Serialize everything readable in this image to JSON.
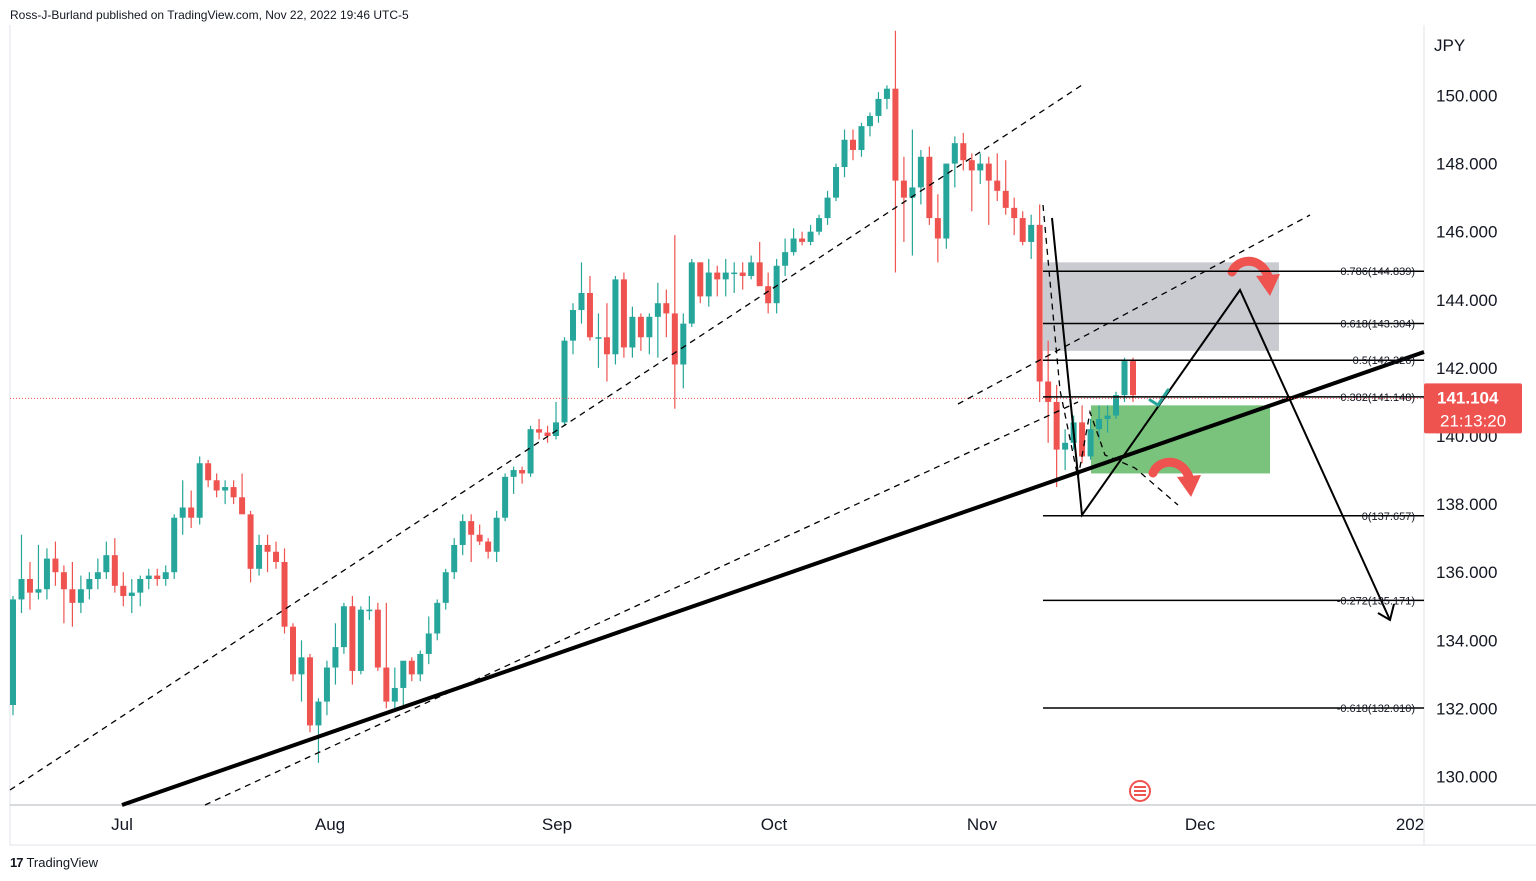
{
  "header": {
    "text": "Ross-J-Burland published on TradingView.com, Nov 22, 2022 19:46 UTC-5"
  },
  "footer": {
    "logo_icon": "tradingview-logo-icon",
    "brand": "TradingView",
    "logo_glyph": "17"
  },
  "colors": {
    "up": "#26a69a",
    "down": "#ef5350",
    "price_tag": "#ef5350",
    "supply_zone": "#b2b5be",
    "demand_zone": "#4caf50",
    "lines": "#000000",
    "arrow": "#ef5350"
  },
  "chart_data": {
    "type": "candlestick",
    "symbol_currency": "JPY",
    "y_ticks": [
      "150.000",
      "148.000",
      "146.000",
      "144.000",
      "142.000",
      "140.000",
      "138.000",
      "136.000",
      "134.000",
      "132.000",
      "130.000"
    ],
    "y_tick_values": [
      150,
      148,
      146,
      144,
      142,
      140,
      138,
      136,
      134,
      132,
      130
    ],
    "ylim": [
      129.3,
      152.0
    ],
    "x_ticks": [
      "Jul",
      "Aug",
      "Sep",
      "Oct",
      "Nov",
      "Dec",
      "202"
    ],
    "current_price": "141.104",
    "countdown": "21:13:20",
    "candles": [
      [
        132.1,
        135.3,
        131.8,
        135.2
      ],
      [
        135.2,
        137.1,
        134.8,
        135.8
      ],
      [
        135.8,
        136.3,
        134.9,
        135.4
      ],
      [
        135.4,
        136.8,
        135.2,
        135.5
      ],
      [
        135.5,
        136.7,
        135.2,
        136.4
      ],
      [
        136.4,
        136.9,
        135.6,
        136.0
      ],
      [
        136.0,
        136.2,
        134.5,
        135.5
      ],
      [
        135.5,
        136.3,
        134.4,
        135.1
      ],
      [
        135.1,
        135.9,
        134.8,
        135.5
      ],
      [
        135.5,
        136.0,
        135.2,
        135.8
      ],
      [
        135.8,
        136.4,
        135.5,
        136.0
      ],
      [
        136.0,
        136.9,
        135.8,
        136.5
      ],
      [
        136.5,
        137.0,
        135.4,
        135.6
      ],
      [
        135.6,
        136.0,
        135.0,
        135.3
      ],
      [
        135.3,
        135.8,
        134.8,
        135.4
      ],
      [
        135.4,
        135.9,
        135.0,
        135.8
      ],
      [
        135.8,
        136.1,
        135.5,
        135.9
      ],
      [
        135.9,
        136.1,
        135.6,
        135.8
      ],
      [
        135.8,
        136.2,
        135.6,
        136.0
      ],
      [
        136.0,
        137.7,
        135.8,
        137.6
      ],
      [
        137.6,
        138.7,
        137.1,
        137.9
      ],
      [
        137.9,
        138.4,
        137.3,
        137.6
      ],
      [
        137.6,
        139.4,
        137.4,
        139.2
      ],
      [
        139.2,
        139.3,
        138.5,
        138.7
      ],
      [
        138.7,
        138.9,
        138.2,
        138.4
      ],
      [
        138.4,
        138.7,
        138.0,
        138.5
      ],
      [
        138.5,
        138.7,
        138.0,
        138.2
      ],
      [
        138.2,
        138.9,
        137.9,
        137.7
      ],
      [
        137.7,
        137.8,
        135.7,
        136.1
      ],
      [
        136.1,
        137.1,
        135.9,
        136.8
      ],
      [
        136.8,
        137.1,
        136.0,
        136.6
      ],
      [
        136.6,
        136.9,
        136.1,
        136.3
      ],
      [
        136.3,
        136.7,
        134.2,
        134.4
      ],
      [
        134.4,
        134.5,
        132.8,
        133.0
      ],
      [
        133.0,
        134.0,
        132.2,
        133.5
      ],
      [
        133.5,
        133.6,
        131.3,
        131.5
      ],
      [
        131.5,
        132.3,
        130.4,
        132.2
      ],
      [
        132.2,
        133.4,
        131.8,
        133.2
      ],
      [
        133.2,
        134.5,
        132.7,
        133.8
      ],
      [
        133.8,
        135.1,
        133.6,
        135.0
      ],
      [
        135.0,
        135.3,
        132.7,
        133.1
      ],
      [
        133.1,
        135.0,
        133.0,
        134.9
      ],
      [
        134.9,
        135.3,
        134.6,
        134.9
      ],
      [
        134.9,
        135.1,
        133.1,
        133.2
      ],
      [
        133.2,
        135.1,
        132.0,
        132.2
      ],
      [
        132.2,
        133.2,
        131.9,
        132.6
      ],
      [
        132.6,
        133.2,
        132.1,
        133.4
      ],
      [
        133.4,
        133.5,
        132.8,
        133.0
      ],
      [
        133.0,
        133.7,
        132.8,
        133.6
      ],
      [
        133.6,
        134.7,
        133.3,
        134.2
      ],
      [
        134.2,
        135.2,
        134.0,
        135.1
      ],
      [
        135.1,
        136.1,
        134.9,
        136.0
      ],
      [
        136.0,
        137.0,
        135.8,
        136.8
      ],
      [
        136.8,
        137.7,
        136.5,
        137.5
      ],
      [
        137.5,
        137.7,
        136.3,
        137.1
      ],
      [
        137.1,
        137.4,
        136.8,
        136.9
      ],
      [
        136.9,
        137.0,
        136.4,
        136.6
      ],
      [
        136.6,
        137.8,
        136.3,
        137.6
      ],
      [
        137.6,
        138.9,
        137.5,
        138.8
      ],
      [
        138.8,
        139.1,
        138.3,
        139.0
      ],
      [
        139.0,
        139.1,
        138.6,
        138.9
      ],
      [
        138.9,
        140.3,
        138.8,
        140.2
      ],
      [
        140.2,
        140.5,
        139.9,
        140.1
      ],
      [
        140.1,
        140.3,
        139.8,
        140.0
      ],
      [
        140.0,
        141.0,
        139.9,
        140.4
      ],
      [
        140.4,
        142.9,
        140.3,
        142.8
      ],
      [
        142.8,
        143.9,
        142.4,
        143.7
      ],
      [
        143.7,
        145.1,
        143.3,
        144.2
      ],
      [
        144.2,
        144.7,
        142.8,
        142.9
      ],
      [
        142.9,
        143.6,
        142.0,
        142.9
      ],
      [
        142.9,
        143.9,
        141.6,
        142.4
      ],
      [
        142.4,
        144.7,
        142.1,
        144.6
      ],
      [
        144.6,
        144.8,
        142.3,
        142.6
      ],
      [
        142.6,
        143.8,
        142.3,
        143.5
      ],
      [
        143.5,
        143.6,
        142.5,
        142.9
      ],
      [
        142.9,
        143.6,
        142.4,
        143.5
      ],
      [
        143.5,
        144.5,
        142.3,
        143.9
      ],
      [
        143.9,
        144.3,
        142.9,
        143.6
      ],
      [
        143.6,
        145.9,
        140.8,
        142.1
      ],
      [
        142.1,
        143.6,
        141.4,
        143.3
      ],
      [
        143.3,
        145.2,
        143.2,
        145.1
      ],
      [
        145.1,
        145.1,
        143.9,
        144.1
      ],
      [
        144.1,
        145.2,
        143.8,
        144.8
      ],
      [
        144.8,
        145.0,
        144.1,
        144.6
      ],
      [
        144.6,
        145.2,
        144.1,
        144.8
      ],
      [
        144.8,
        145.1,
        144.2,
        144.8
      ],
      [
        144.8,
        145.1,
        144.3,
        144.7
      ],
      [
        144.7,
        145.3,
        144.6,
        145.1
      ],
      [
        145.1,
        145.7,
        144.6,
        144.4
      ],
      [
        144.4,
        144.8,
        143.6,
        143.9
      ],
      [
        143.9,
        145.2,
        143.6,
        145.0
      ],
      [
        145.0,
        145.8,
        144.7,
        145.4
      ],
      [
        145.4,
        146.1,
        145.3,
        145.8
      ],
      [
        145.8,
        146.0,
        145.6,
        145.7
      ],
      [
        145.7,
        146.2,
        145.6,
        146.0
      ],
      [
        146.0,
        146.5,
        145.9,
        146.4
      ],
      [
        146.4,
        147.2,
        146.2,
        147.0
      ],
      [
        147.0,
        148.0,
        146.9,
        147.9
      ],
      [
        147.9,
        149.0,
        147.6,
        148.7
      ],
      [
        148.7,
        149.0,
        148.1,
        148.4
      ],
      [
        148.4,
        149.2,
        148.2,
        149.1
      ],
      [
        149.1,
        149.5,
        148.8,
        149.4
      ],
      [
        149.4,
        150.1,
        149.2,
        149.9
      ],
      [
        149.9,
        150.3,
        149.6,
        150.2
      ],
      [
        150.2,
        151.9,
        144.8,
        147.5
      ],
      [
        147.5,
        148.2,
        145.7,
        147.0
      ],
      [
        147.0,
        149.0,
        145.3,
        147.3
      ],
      [
        147.3,
        148.4,
        146.8,
        148.2
      ],
      [
        148.2,
        148.5,
        146.2,
        146.4
      ],
      [
        146.4,
        147.1,
        145.1,
        145.8
      ],
      [
        145.8,
        148.0,
        145.5,
        148.0
      ],
      [
        148.0,
        148.8,
        147.3,
        148.6
      ],
      [
        148.6,
        148.9,
        147.8,
        148.1
      ],
      [
        148.1,
        148.3,
        146.6,
        147.8
      ],
      [
        147.8,
        148.3,
        147.4,
        148.0
      ],
      [
        148.0,
        148.2,
        146.2,
        147.5
      ],
      [
        147.5,
        148.3,
        146.9,
        147.2
      ],
      [
        147.2,
        148.1,
        146.5,
        146.7
      ],
      [
        146.7,
        147.0,
        145.9,
        146.4
      ],
      [
        146.4,
        146.6,
        145.6,
        145.7
      ],
      [
        145.7,
        146.5,
        145.2,
        146.2
      ],
      [
        146.2,
        146.8,
        141.0,
        141.6
      ],
      [
        141.6,
        142.8,
        139.8,
        141.0
      ],
      [
        141.0,
        141.5,
        138.5,
        139.6
      ],
      [
        139.6,
        140.2,
        139.0,
        139.8
      ],
      [
        139.8,
        140.6,
        139.6,
        140.4
      ],
      [
        140.4,
        140.9,
        139.2,
        139.4
      ],
      [
        139.4,
        140.5,
        139.3,
        140.2
      ],
      [
        140.2,
        140.9,
        139.9,
        140.5
      ],
      [
        140.5,
        140.9,
        140.1,
        140.6
      ],
      [
        140.6,
        141.3,
        140.5,
        141.2
      ],
      [
        141.2,
        142.3,
        141.0,
        142.2
      ],
      [
        142.2,
        142.3,
        141.0,
        141.2
      ]
    ],
    "fib_levels": [
      {
        "ratio": 0.786,
        "price": 144.839,
        "label": "0.786(144.839)"
      },
      {
        "ratio": 0.618,
        "price": 143.304,
        "label": "0.618(143.304)"
      },
      {
        "ratio": 0.5,
        "price": 142.226,
        "label": "0.5(142.226)"
      },
      {
        "ratio": 0.382,
        "price": 141.148,
        "label": "0.382(141.148)"
      },
      {
        "ratio": 0,
        "price": 137.657,
        "label": "0(137.657)"
      },
      {
        "ratio": -0.272,
        "price": 135.171,
        "label": "-0.272(135.171)"
      },
      {
        "ratio": -0.618,
        "price": 132.01,
        "label": "-0.618(132.010)"
      }
    ],
    "zones": [
      {
        "name": "supply",
        "top": 145.1,
        "bottom": 142.5
      },
      {
        "name": "demand",
        "top": 140.9,
        "bottom": 138.9
      }
    ]
  }
}
